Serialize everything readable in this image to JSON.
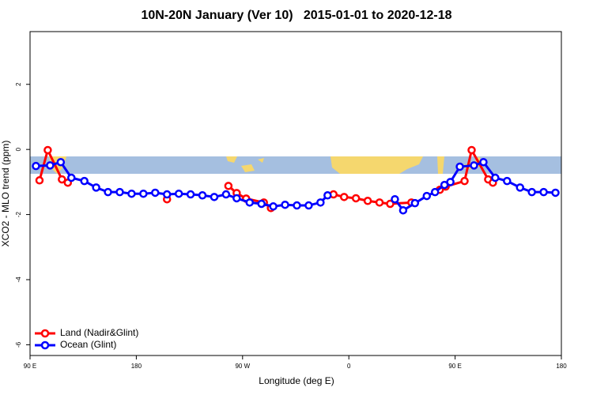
{
  "chart_data": {
    "type": "line",
    "title": "10N-20N January (Ver 10)   2015-01-01 to 2020-12-18",
    "xlabel": "Longitude (deg E)",
    "ylabel": "XCO2 - MLO trend (ppm)",
    "xlim": [
      90,
      540
    ],
    "ylim": [
      -6.33,
      3.62
    ],
    "xticks": [
      {
        "value": 90,
        "label": "90 E"
      },
      180,
      {
        "value": 270,
        "label": "90 W"
      },
      {
        "value": 360,
        "label": "0"
      },
      {
        "value": 450,
        "label": "90 E"
      },
      {
        "value": 540,
        "label": "180"
      }
    ],
    "yticks": [
      -6,
      -4,
      -2,
      0,
      2
    ],
    "legend": "bottom-left",
    "series": [
      {
        "name": "Land (Nadir&Glint)",
        "color": "#ff0000",
        "x": [
          98,
          105,
          117,
          122,
          null,
          206,
          null,
          258,
          265,
          273,
          288,
          294,
          null,
          347,
          356,
          366,
          376,
          386,
          395,
          413,
          null,
          437,
          442,
          458,
          464,
          478,
          482
        ],
        "values": [
          -0.95,
          -0.02,
          -0.92,
          -1.02,
          null,
          -1.53,
          null,
          -1.12,
          -1.34,
          -1.51,
          -1.63,
          -1.8,
          null,
          -1.38,
          -1.46,
          -1.5,
          -1.58,
          -1.63,
          -1.67,
          -1.63,
          null,
          -1.24,
          -1.14,
          -0.97,
          -0.02,
          -0.92,
          -1.02
        ]
      },
      {
        "name": "Ocean (Glint)",
        "color": "#0000ff",
        "x": [
          95,
          107,
          116,
          125,
          136,
          146,
          156,
          166,
          176,
          186,
          196,
          206,
          216,
          226,
          236,
          246,
          256,
          265,
          276,
          286,
          296,
          306,
          316,
          326,
          336,
          342,
          null,
          399,
          406,
          416,
          426,
          433,
          441,
          446,
          454,
          466,
          474,
          484,
          494,
          505,
          515,
          525,
          535
        ],
        "values": [
          -0.51,
          -0.49,
          -0.39,
          -0.87,
          -0.97,
          -1.17,
          -1.31,
          -1.31,
          -1.36,
          -1.36,
          -1.33,
          -1.38,
          -1.36,
          -1.38,
          -1.41,
          -1.46,
          -1.38,
          -1.5,
          -1.63,
          -1.67,
          -1.75,
          -1.7,
          -1.72,
          -1.72,
          -1.63,
          -1.41,
          null,
          -1.53,
          -1.87,
          -1.65,
          -1.43,
          -1.31,
          -1.09,
          -1.0,
          -0.53,
          -0.49,
          -0.39,
          -0.87,
          -0.97,
          -1.17,
          -1.31,
          -1.31,
          -1.33
        ]
      }
    ]
  }
}
